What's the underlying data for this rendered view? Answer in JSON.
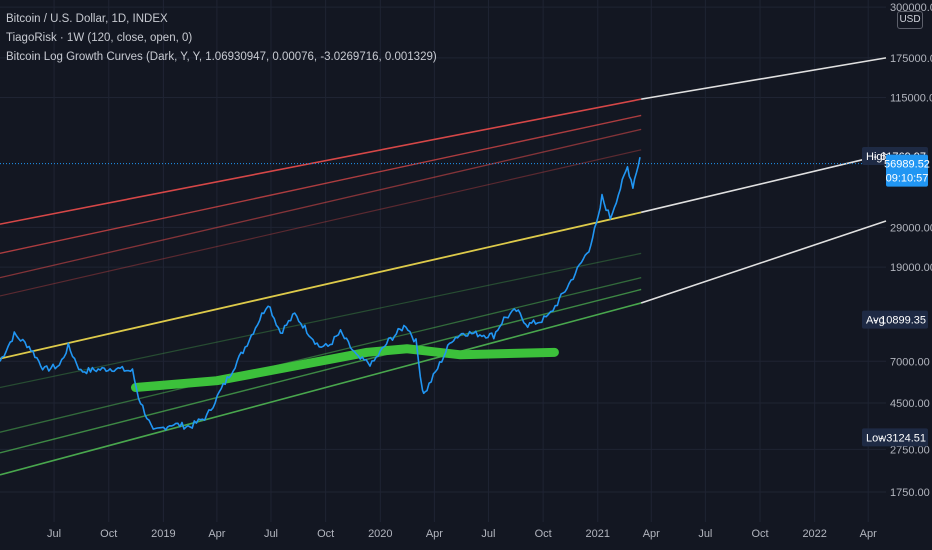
{
  "legend": {
    "main": "Bitcoin / U.S. Dollar, 1D, INDEX",
    "indicator1": "TiagoRisk · 1W (120, close, open, 0)",
    "indicator2": "Bitcoin Log Growth Curves (Dark, Y, Y, 1.06930947, 0.00076, -3.0269716, 0.001329)"
  },
  "currency": "USD",
  "colors": {
    "background": "#131722",
    "price": "#2196f3",
    "risk_band": "#3cc13b",
    "median": "#e8d44d",
    "top_band": "#e04a4a",
    "bottom_band": "#4caf50",
    "projection": "#e0e0e0",
    "last_price_tag": "#2196f3",
    "label_tag": "#1e2a44"
  },
  "chart_data": {
    "type": "line",
    "title": "Bitcoin / U.S. Dollar, 1D, INDEX",
    "y_scale": "log",
    "ylim": [
      1300,
      310000
    ],
    "xlim": [
      "2018-04-01",
      "2022-05-01"
    ],
    "y_ticks": [
      {
        "value": 300000,
        "label": "300000.00"
      },
      {
        "value": 175000,
        "label": "175000.00"
      },
      {
        "value": 115000,
        "label": "115000.00"
      },
      {
        "value": 29000,
        "label": "29000.00"
      },
      {
        "value": 19000,
        "label": "19000.00"
      },
      {
        "value": 7000,
        "label": "7000.00"
      },
      {
        "value": 4500,
        "label": "4500.00"
      },
      {
        "value": 2750,
        "label": "2750.00"
      },
      {
        "value": 1750,
        "label": "1750.00"
      }
    ],
    "x_ticks": [
      {
        "date": "2018-07-01",
        "label": "Jul"
      },
      {
        "date": "2018-10-01",
        "label": "Oct"
      },
      {
        "date": "2019-01-01",
        "label": "2019"
      },
      {
        "date": "2019-04-01",
        "label": "Apr"
      },
      {
        "date": "2019-07-01",
        "label": "Jul"
      },
      {
        "date": "2019-10-01",
        "label": "Oct"
      },
      {
        "date": "2020-01-01",
        "label": "2020"
      },
      {
        "date": "2020-04-01",
        "label": "Apr"
      },
      {
        "date": "2020-07-01",
        "label": "Jul"
      },
      {
        "date": "2020-10-01",
        "label": "Oct"
      },
      {
        "date": "2021-01-01",
        "label": "2021"
      },
      {
        "date": "2021-04-01",
        "label": "Apr"
      },
      {
        "date": "2021-07-01",
        "label": "Jul"
      },
      {
        "date": "2021-10-01",
        "label": "Oct"
      },
      {
        "date": "2022-01-01",
        "label": "2022"
      },
      {
        "date": "2022-04-01",
        "label": "Apr"
      }
    ],
    "price_series": {
      "dates": [
        "2018-04-01",
        "2018-04-25",
        "2018-05-20",
        "2018-06-15",
        "2018-07-10",
        "2018-07-25",
        "2018-08-15",
        "2018-09-10",
        "2018-10-10",
        "2018-11-10",
        "2018-11-20",
        "2018-12-15",
        "2019-01-15",
        "2019-02-15",
        "2019-03-15",
        "2019-04-05",
        "2019-05-15",
        "2019-06-26",
        "2019-07-17",
        "2019-08-10",
        "2019-09-20",
        "2019-10-05",
        "2019-10-26",
        "2019-11-25",
        "2019-12-18",
        "2020-01-15",
        "2020-02-13",
        "2020-03-01",
        "2020-03-12",
        "2020-03-16",
        "2020-04-10",
        "2020-04-30",
        "2020-05-20",
        "2020-06-20",
        "2020-07-10",
        "2020-07-27",
        "2020-08-17",
        "2020-09-05",
        "2020-09-25",
        "2020-10-10",
        "2020-10-25",
        "2020-11-10",
        "2020-12-01",
        "2020-12-17",
        "2021-01-02",
        "2021-01-08",
        "2021-01-22",
        "2021-02-08",
        "2021-02-20",
        "2021-03-01",
        "2021-03-13"
      ],
      "values": [
        7000,
        9300,
        8200,
        6400,
        6700,
        8200,
        6300,
        6400,
        6500,
        6300,
        4800,
        3300,
        3600,
        3500,
        3900,
        5000,
        7800,
        13000,
        9500,
        11500,
        8200,
        8200,
        9500,
        7200,
        6800,
        8700,
        10300,
        8600,
        5200,
        5000,
        6800,
        8800,
        9500,
        9300,
        9200,
        11000,
        12000,
        10300,
        10700,
        11300,
        13000,
        15300,
        19200,
        23000,
        32000,
        40000,
        32000,
        44000,
        55000,
        45000,
        61000
      ]
    },
    "risk_band": {
      "dates": [
        "2018-11-15",
        "2019-04-01",
        "2019-12-10",
        "2020-02-15",
        "2020-05-15",
        "2020-10-20"
      ],
      "values": [
        5300,
        5700,
        7700,
        8000,
        7500,
        7700
      ]
    },
    "log_growth_curves": {
      "start_date": "2018-04-01",
      "end_date": "2021-03-15",
      "curves": [
        {
          "name": "top",
          "start": 30000,
          "end": 113000
        },
        {
          "name": "top-2",
          "start": 22000,
          "end": 95000
        },
        {
          "name": "top-3",
          "start": 17000,
          "end": 82000
        },
        {
          "name": "top-4",
          "start": 14000,
          "end": 66000
        },
        {
          "name": "median",
          "start": 7200,
          "end": 34000
        },
        {
          "name": "low-1",
          "start": 5300,
          "end": 22000
        },
        {
          "name": "low-2",
          "start": 3300,
          "end": 17000
        },
        {
          "name": "low-3",
          "start": 2650,
          "end": 15000
        },
        {
          "name": "bottom",
          "start": 2100,
          "end": 13000
        }
      ]
    },
    "projections": [
      {
        "start_date": "2021-03-15",
        "start": 113000,
        "end_date": "2022-05-01",
        "end": 175000
      },
      {
        "start_date": "2021-03-15",
        "start": 34000,
        "end_date": "2022-05-01",
        "end": 63000
      },
      {
        "start_date": "2021-03-15",
        "start": 13000,
        "end_date": "2022-05-01",
        "end": 31000
      }
    ],
    "price_labels": [
      {
        "kind": "high",
        "label": "High",
        "value": 61769.97,
        "text": "61769.97"
      },
      {
        "kind": "last",
        "label": "",
        "value": 56989.52,
        "text": "56989.52",
        "countdown": "09:10:57"
      },
      {
        "kind": "avg",
        "label": "Avg",
        "value": 10899.35,
        "text": "10899.35"
      },
      {
        "kind": "low",
        "label": "Low",
        "value": 3124.51,
        "text": "3124.51"
      }
    ],
    "last_price_line": 56989.52,
    "grid": true
  }
}
